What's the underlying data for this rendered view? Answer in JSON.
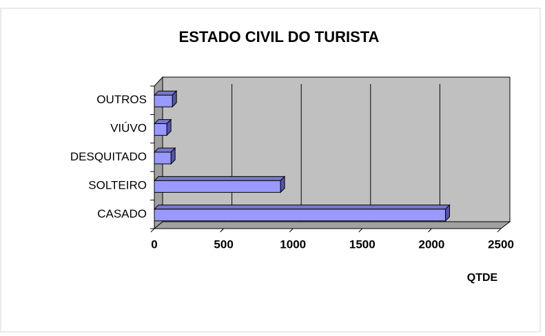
{
  "chart_data": {
    "type": "bar",
    "title": "ESTADO CIVIL DO TURISTA",
    "categories": [
      "OUTROS",
      "VIÚVO",
      "DESQUITADO",
      "SOLTEIRO",
      "CASADO"
    ],
    "values": [
      130,
      90,
      120,
      910,
      2100
    ],
    "color": "#9999ff",
    "xlabel": "QTDE",
    "xlim": [
      0,
      2500
    ],
    "xticks": [
      0,
      500,
      1000,
      1500,
      2000,
      2500
    ],
    "grid": true
  }
}
